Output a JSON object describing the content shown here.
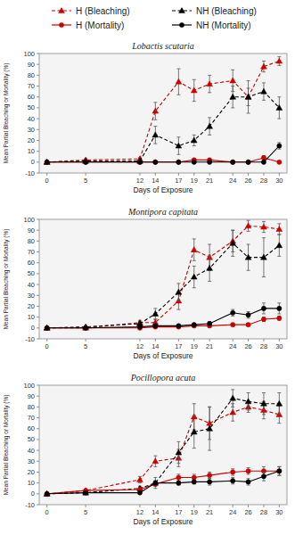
{
  "chart_data": [
    {
      "type": "line",
      "title": "Lobactis scutaria",
      "xlabel": "Days of Exposure",
      "ylabel": "Mean Partial Bleaching or Mortality (%)",
      "x": [
        0,
        5,
        12,
        14,
        17,
        19,
        21,
        24,
        26,
        28,
        30
      ],
      "xlim": [
        -1,
        31
      ],
      "xticks": [
        0,
        5,
        12,
        14,
        17,
        19,
        21,
        24,
        26,
        28,
        30
      ],
      "ylim": [
        -10,
        100
      ],
      "yticks": [
        -10,
        0,
        10,
        20,
        30,
        40,
        50,
        60,
        70,
        80,
        90,
        100
      ],
      "series": [
        {
          "name": "H (Bleaching)",
          "color": "#cc0000",
          "line_style": "dashed",
          "marker": "triangle",
          "values": [
            0,
            2,
            3,
            47,
            74,
            66,
            72,
            75,
            60,
            88,
            93
          ],
          "errors": [
            0,
            1,
            1,
            8,
            12,
            10,
            8,
            10,
            15,
            5,
            4
          ]
        },
        {
          "name": "NH (Bleaching)",
          "color": "#000000",
          "line_style": "dashed",
          "marker": "triangle",
          "values": [
            0,
            1,
            1,
            25,
            15,
            20,
            33,
            60,
            60,
            65,
            50
          ],
          "errors": [
            0,
            1,
            1,
            8,
            8,
            5,
            8,
            10,
            8,
            8,
            10
          ]
        },
        {
          "name": "H (Mortality)",
          "color": "#cc0000",
          "line_style": "solid",
          "marker": "circle",
          "values": [
            0,
            0,
            0,
            0,
            0,
            2,
            2,
            0,
            0,
            4,
            0
          ],
          "errors": [
            0,
            0,
            0,
            0,
            0,
            1,
            1,
            0,
            0,
            2,
            0
          ]
        },
        {
          "name": "NH (Mortality)",
          "color": "#000000",
          "line_style": "solid",
          "marker": "circle",
          "values": [
            0,
            0,
            0,
            0,
            0,
            0,
            0,
            0,
            0,
            0,
            15
          ],
          "errors": [
            0,
            0,
            0,
            0,
            0,
            0,
            0,
            0,
            0,
            0,
            3
          ]
        }
      ]
    },
    {
      "type": "line",
      "title": "Montipora capitata",
      "xlabel": "Days of Exposure",
      "ylabel": "Mean Partial Bleaching or Mortality (%)",
      "x": [
        0,
        5,
        12,
        14,
        17,
        19,
        21,
        24,
        26,
        28,
        30
      ],
      "xlim": [
        -1,
        31
      ],
      "xticks": [
        0,
        5,
        12,
        14,
        17,
        19,
        21,
        24,
        26,
        28,
        30
      ],
      "ylim": [
        -10,
        100
      ],
      "yticks": [
        -10,
        0,
        10,
        20,
        30,
        40,
        50,
        60,
        70,
        80,
        90,
        100
      ],
      "series": [
        {
          "name": "H (Bleaching)",
          "color": "#cc0000",
          "line_style": "dashed",
          "marker": "triangle",
          "values": [
            0,
            0,
            5,
            5,
            25,
            72,
            65,
            80,
            94,
            93,
            91
          ],
          "errors": [
            0,
            1,
            2,
            3,
            8,
            10,
            12,
            10,
            5,
            5,
            5
          ]
        },
        {
          "name": "NH (Bleaching)",
          "color": "#000000",
          "line_style": "dashed",
          "marker": "triangle",
          "values": [
            0,
            1,
            4,
            13,
            33,
            47,
            55,
            78,
            65,
            65,
            76
          ],
          "errors": [
            0,
            1,
            2,
            5,
            8,
            10,
            12,
            12,
            12,
            18,
            10
          ]
        },
        {
          "name": "H (Mortality)",
          "color": "#cc0000",
          "line_style": "solid",
          "marker": "circle",
          "values": [
            0,
            0,
            0,
            1,
            1,
            2,
            2,
            3,
            3,
            8,
            9
          ],
          "errors": [
            0,
            0,
            0,
            0,
            0,
            1,
            1,
            1,
            1,
            2,
            2
          ]
        },
        {
          "name": "NH (Mortality)",
          "color": "#000000",
          "line_style": "solid",
          "marker": "circle",
          "values": [
            0,
            0,
            1,
            2,
            2,
            3,
            4,
            14,
            12,
            18,
            18
          ],
          "errors": [
            0,
            0,
            0,
            1,
            1,
            1,
            2,
            3,
            3,
            5,
            5
          ]
        }
      ]
    },
    {
      "type": "line",
      "title": "Pocillopora acuta",
      "xlabel": "Days of Exposure",
      "ylabel": "Mean Partial Bleaching or Mortality (%)",
      "x": [
        0,
        5,
        12,
        14,
        17,
        19,
        21,
        24,
        26,
        28,
        30
      ],
      "xlim": [
        -1,
        31
      ],
      "xticks": [
        0,
        5,
        12,
        14,
        17,
        19,
        21,
        24,
        26,
        28,
        30
      ],
      "ylim": [
        -10,
        100
      ],
      "yticks": [
        -10,
        0,
        10,
        20,
        30,
        40,
        50,
        60,
        70,
        80,
        90,
        100
      ],
      "series": [
        {
          "name": "H (Bleaching)",
          "color": "#cc0000",
          "line_style": "dashed",
          "marker": "triangle",
          "values": [
            0,
            3,
            13,
            30,
            33,
            71,
            65,
            75,
            80,
            77,
            73
          ],
          "errors": [
            0,
            1,
            3,
            5,
            8,
            12,
            15,
            8,
            5,
            8,
            8
          ]
        },
        {
          "name": "NH (Bleaching)",
          "color": "#000000",
          "line_style": "dashed",
          "marker": "triangle",
          "values": [
            0,
            1,
            5,
            10,
            38,
            57,
            60,
            88,
            85,
            83,
            83
          ],
          "errors": [
            0,
            1,
            2,
            5,
            10,
            15,
            20,
            8,
            8,
            10,
            10
          ]
        },
        {
          "name": "H (Mortality)",
          "color": "#cc0000",
          "line_style": "solid",
          "marker": "circle",
          "values": [
            0,
            3,
            4,
            9,
            15,
            15,
            17,
            20,
            21,
            21,
            21
          ],
          "errors": [
            0,
            1,
            1,
            2,
            3,
            3,
            3,
            3,
            3,
            4,
            4
          ]
        },
        {
          "name": "NH (Mortality)",
          "color": "#000000",
          "line_style": "solid",
          "marker": "circle",
          "values": [
            0,
            1,
            1,
            10,
            10,
            11,
            11,
            12,
            11,
            16,
            21
          ],
          "errors": [
            0,
            0,
            0,
            2,
            2,
            2,
            3,
            3,
            3,
            4,
            4
          ]
        }
      ]
    }
  ]
}
